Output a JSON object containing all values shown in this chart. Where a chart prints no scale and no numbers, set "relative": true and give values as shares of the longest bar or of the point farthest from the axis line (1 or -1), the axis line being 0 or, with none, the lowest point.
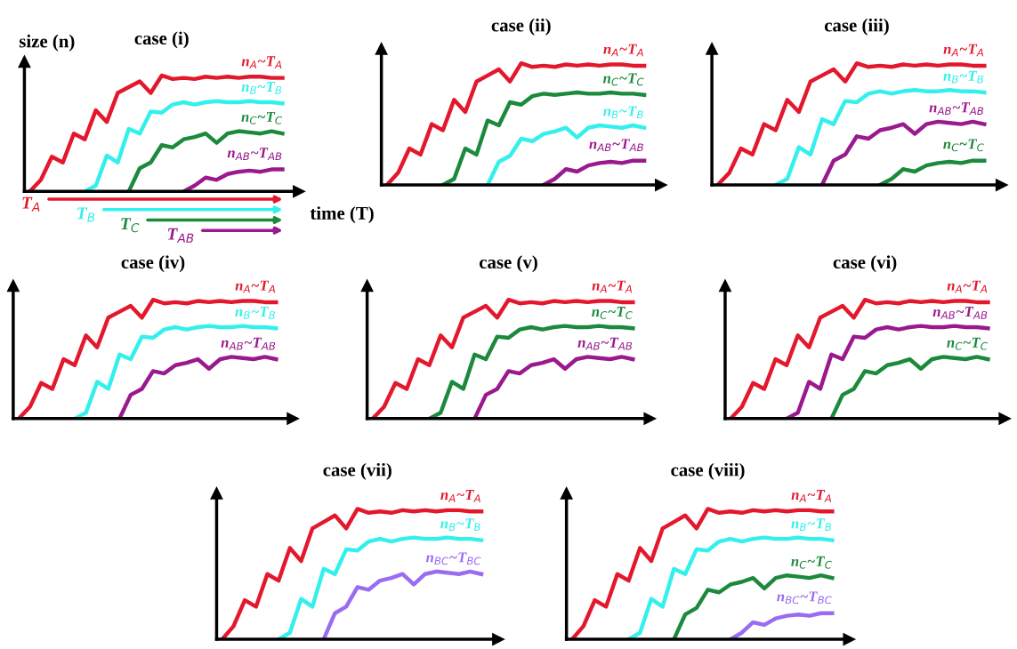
{
  "chart_data": [
    {
      "type": "line",
      "title": "case (i)",
      "xlabel": "time (T)",
      "ylabel": "size (n)",
      "relative": true,
      "grid": false,
      "legend": false,
      "categories": [
        null,
        null,
        null,
        null,
        null,
        null,
        null,
        null,
        null,
        null,
        null,
        null,
        null,
        null,
        null,
        null,
        null,
        null,
        null,
        null,
        null,
        null,
        null,
        null
      ],
      "annotations": [
        "T$_{A}$",
        "T$_{B}$",
        "T$_{C}$",
        "T$_{AB}$"
      ],
      "series": [
        {
          "name": "n$_{A}$~T$_{A}$",
          "color": "#e3182d",
          "values": [
            0,
            0.1,
            0.3,
            0.25,
            0.5,
            0.45,
            0.7,
            0.6,
            0.85,
            0.9,
            0.95,
            0.85,
            1.0,
            0.97,
            0.98,
            0.97,
            0.99,
            0.98,
            0.99,
            0.98,
            0.99,
            0.99,
            0.98,
            0.98
          ]
        },
        {
          "name": "n$_{B}$~T$_{B}$",
          "color": "#33f0ec",
          "values": [
            null,
            null,
            null,
            null,
            null,
            0,
            0.05,
            0.31,
            0.25,
            0.54,
            0.5,
            0.69,
            0.68,
            0.75,
            0.77,
            0.75,
            0.77,
            0.78,
            0.77,
            0.77,
            0.78,
            0.77,
            0.77,
            0.76
          ]
        },
        {
          "name": "n$_{C}$~T$_{C}$",
          "color": "#1b8a3c",
          "values": [
            null,
            null,
            null,
            null,
            null,
            null,
            null,
            null,
            null,
            0,
            0.2,
            0.25,
            0.4,
            0.38,
            0.45,
            0.47,
            0.5,
            0.42,
            0.5,
            0.52,
            0.51,
            0.5,
            0.52,
            0.5
          ]
        },
        {
          "name": "n$_{AB}$~T$_{AB}$",
          "color": "#9a1a8e",
          "values": [
            null,
            null,
            null,
            null,
            null,
            null,
            null,
            null,
            null,
            null,
            null,
            null,
            null,
            null,
            0,
            0.05,
            0.12,
            0.1,
            0.15,
            0.17,
            0.18,
            0.17,
            0.19,
            0.19
          ]
        }
      ]
    },
    {
      "type": "line",
      "title": "case (ii)",
      "relative": true,
      "grid": false,
      "legend": false,
      "categories": [
        null,
        null,
        null,
        null,
        null,
        null,
        null,
        null,
        null,
        null,
        null,
        null,
        null,
        null,
        null,
        null,
        null,
        null,
        null,
        null,
        null,
        null,
        null,
        null
      ],
      "series": [
        {
          "name": "n$_{A}$~T$_{A}$",
          "color": "#e3182d",
          "values": [
            0,
            0.1,
            0.3,
            0.25,
            0.5,
            0.45,
            0.7,
            0.6,
            0.85,
            0.9,
            0.95,
            0.85,
            1.0,
            0.97,
            0.98,
            0.97,
            0.99,
            0.98,
            0.99,
            0.98,
            0.99,
            0.99,
            0.98,
            0.98
          ]
        },
        {
          "name": "n$_{C}$~T$_{C}$",
          "color": "#1b8a3c",
          "values": [
            null,
            null,
            null,
            null,
            null,
            0,
            0.05,
            0.3,
            0.25,
            0.53,
            0.49,
            0.68,
            0.66,
            0.73,
            0.75,
            0.74,
            0.75,
            0.76,
            0.75,
            0.75,
            0.76,
            0.75,
            0.75,
            0.74
          ]
        },
        {
          "name": "n$_{B}$~T$_{B}$",
          "color": "#33f0ec",
          "values": [
            null,
            null,
            null,
            null,
            null,
            null,
            null,
            null,
            null,
            0,
            0.19,
            0.24,
            0.38,
            0.36,
            0.42,
            0.44,
            0.47,
            0.39,
            0.47,
            0.49,
            0.48,
            0.47,
            0.49,
            0.47
          ]
        },
        {
          "name": "n$_{AB}$~T$_{AB}$",
          "color": "#9a1a8e",
          "values": [
            null,
            null,
            null,
            null,
            null,
            null,
            null,
            null,
            null,
            null,
            null,
            null,
            null,
            null,
            0,
            0.05,
            0.13,
            0.11,
            0.16,
            0.18,
            0.19,
            0.18,
            0.2,
            0.2
          ]
        }
      ]
    },
    {
      "type": "line",
      "title": "case (iii)",
      "relative": true,
      "grid": false,
      "legend": false,
      "categories": [
        null,
        null,
        null,
        null,
        null,
        null,
        null,
        null,
        null,
        null,
        null,
        null,
        null,
        null,
        null,
        null,
        null,
        null,
        null,
        null,
        null,
        null,
        null,
        null
      ],
      "series": [
        {
          "name": "n$_{A}$~T$_{A}$",
          "color": "#e3182d",
          "values": [
            0,
            0.1,
            0.3,
            0.25,
            0.5,
            0.45,
            0.7,
            0.6,
            0.85,
            0.9,
            0.95,
            0.85,
            1.0,
            0.97,
            0.98,
            0.97,
            0.99,
            0.98,
            0.99,
            0.98,
            0.99,
            0.99,
            0.98,
            0.98
          ]
        },
        {
          "name": "n$_{B}$~T$_{B}$",
          "color": "#33f0ec",
          "values": [
            null,
            null,
            null,
            null,
            null,
            0,
            0.05,
            0.31,
            0.25,
            0.54,
            0.5,
            0.69,
            0.68,
            0.75,
            0.77,
            0.75,
            0.77,
            0.78,
            0.77,
            0.77,
            0.78,
            0.77,
            0.77,
            0.76
          ]
        },
        {
          "name": "n$_{AB}$~T$_{AB}$",
          "color": "#9a1a8e",
          "values": [
            null,
            null,
            null,
            null,
            null,
            null,
            null,
            null,
            null,
            0,
            0.2,
            0.25,
            0.4,
            0.38,
            0.45,
            0.47,
            0.5,
            0.42,
            0.5,
            0.52,
            0.51,
            0.5,
            0.52,
            0.5
          ]
        },
        {
          "name": "n$_{C}$~T$_{C}$",
          "color": "#1b8a3c",
          "values": [
            null,
            null,
            null,
            null,
            null,
            null,
            null,
            null,
            null,
            null,
            null,
            null,
            null,
            null,
            0,
            0.05,
            0.13,
            0.11,
            0.16,
            0.18,
            0.19,
            0.18,
            0.2,
            0.2
          ]
        }
      ]
    },
    {
      "type": "line",
      "title": "case (iv)",
      "relative": true,
      "grid": false,
      "legend": false,
      "categories": [
        null,
        null,
        null,
        null,
        null,
        null,
        null,
        null,
        null,
        null,
        null,
        null,
        null,
        null,
        null,
        null,
        null,
        null,
        null,
        null,
        null,
        null,
        null,
        null
      ],
      "series": [
        {
          "name": "n$_{A}$~T$_{A}$",
          "color": "#e3182d",
          "values": [
            0,
            0.1,
            0.3,
            0.25,
            0.5,
            0.45,
            0.7,
            0.6,
            0.85,
            0.9,
            0.95,
            0.85,
            1.0,
            0.97,
            0.98,
            0.97,
            0.99,
            0.98,
            0.99,
            0.98,
            0.99,
            0.99,
            0.98,
            0.98
          ]
        },
        {
          "name": "n$_{B}$~T$_{B}$",
          "color": "#33f0ec",
          "values": [
            null,
            null,
            null,
            null,
            null,
            0,
            0.05,
            0.31,
            0.25,
            0.54,
            0.5,
            0.69,
            0.68,
            0.75,
            0.77,
            0.75,
            0.77,
            0.78,
            0.77,
            0.77,
            0.78,
            0.77,
            0.77,
            0.76
          ]
        },
        {
          "name": "n$_{AB}$~T$_{AB}$",
          "color": "#9a1a8e",
          "values": [
            null,
            null,
            null,
            null,
            null,
            null,
            null,
            null,
            null,
            0,
            0.2,
            0.25,
            0.4,
            0.38,
            0.45,
            0.47,
            0.5,
            0.42,
            0.5,
            0.52,
            0.51,
            0.5,
            0.52,
            0.5
          ]
        }
      ]
    },
    {
      "type": "line",
      "title": "case (v)",
      "relative": true,
      "grid": false,
      "legend": false,
      "categories": [
        null,
        null,
        null,
        null,
        null,
        null,
        null,
        null,
        null,
        null,
        null,
        null,
        null,
        null,
        null,
        null,
        null,
        null,
        null,
        null,
        null,
        null,
        null,
        null
      ],
      "series": [
        {
          "name": "n$_{A}$~T$_{A}$",
          "color": "#e3182d",
          "values": [
            0,
            0.1,
            0.3,
            0.25,
            0.5,
            0.45,
            0.7,
            0.6,
            0.85,
            0.9,
            0.95,
            0.85,
            1.0,
            0.97,
            0.98,
            0.97,
            0.99,
            0.98,
            0.99,
            0.98,
            0.99,
            0.99,
            0.98,
            0.98
          ]
        },
        {
          "name": "n$_{C}$~T$_{C}$",
          "color": "#1b8a3c",
          "values": [
            null,
            null,
            null,
            null,
            null,
            0,
            0.05,
            0.31,
            0.25,
            0.54,
            0.5,
            0.69,
            0.68,
            0.75,
            0.77,
            0.75,
            0.77,
            0.78,
            0.77,
            0.77,
            0.78,
            0.77,
            0.77,
            0.76
          ]
        },
        {
          "name": "n$_{AB}$~T$_{AB}$",
          "color": "#9a1a8e",
          "values": [
            null,
            null,
            null,
            null,
            null,
            null,
            null,
            null,
            null,
            0,
            0.2,
            0.25,
            0.4,
            0.38,
            0.45,
            0.47,
            0.5,
            0.42,
            0.5,
            0.52,
            0.51,
            0.5,
            0.52,
            0.5
          ]
        }
      ]
    },
    {
      "type": "line",
      "title": "case (vi)",
      "relative": true,
      "grid": false,
      "legend": false,
      "categories": [
        null,
        null,
        null,
        null,
        null,
        null,
        null,
        null,
        null,
        null,
        null,
        null,
        null,
        null,
        null,
        null,
        null,
        null,
        null,
        null,
        null,
        null,
        null,
        null
      ],
      "series": [
        {
          "name": "n$_{A}$~T$_{A}$",
          "color": "#e3182d",
          "values": [
            0,
            0.1,
            0.3,
            0.25,
            0.5,
            0.45,
            0.7,
            0.6,
            0.85,
            0.9,
            0.95,
            0.85,
            1.0,
            0.97,
            0.98,
            0.97,
            0.99,
            0.98,
            0.99,
            0.98,
            0.99,
            0.99,
            0.98,
            0.98
          ]
        },
        {
          "name": "n$_{AB}$~T$_{AB}$",
          "color": "#9a1a8e",
          "values": [
            null,
            null,
            null,
            null,
            null,
            0,
            0.05,
            0.31,
            0.25,
            0.54,
            0.5,
            0.69,
            0.68,
            0.75,
            0.77,
            0.75,
            0.77,
            0.78,
            0.77,
            0.77,
            0.78,
            0.77,
            0.77,
            0.76
          ]
        },
        {
          "name": "n$_{C}$~T$_{C}$",
          "color": "#1b8a3c",
          "values": [
            null,
            null,
            null,
            null,
            null,
            null,
            null,
            null,
            null,
            0,
            0.2,
            0.25,
            0.4,
            0.38,
            0.45,
            0.47,
            0.5,
            0.42,
            0.5,
            0.52,
            0.51,
            0.5,
            0.52,
            0.5
          ]
        }
      ]
    },
    {
      "type": "line",
      "title": "case (vii)",
      "relative": true,
      "grid": false,
      "legend": false,
      "categories": [
        null,
        null,
        null,
        null,
        null,
        null,
        null,
        null,
        null,
        null,
        null,
        null,
        null,
        null,
        null,
        null,
        null,
        null,
        null,
        null,
        null,
        null,
        null,
        null
      ],
      "series": [
        {
          "name": "n$_{A}$~T$_{A}$",
          "color": "#e3182d",
          "values": [
            0,
            0.1,
            0.3,
            0.25,
            0.5,
            0.45,
            0.7,
            0.6,
            0.85,
            0.9,
            0.95,
            0.85,
            1.0,
            0.97,
            0.98,
            0.97,
            0.99,
            0.98,
            0.99,
            0.98,
            0.99,
            0.99,
            0.98,
            0.98
          ]
        },
        {
          "name": "n$_{B}$~T$_{B}$",
          "color": "#33f0ec",
          "values": [
            null,
            null,
            null,
            null,
            null,
            0,
            0.05,
            0.31,
            0.25,
            0.54,
            0.5,
            0.69,
            0.68,
            0.75,
            0.77,
            0.75,
            0.77,
            0.78,
            0.77,
            0.77,
            0.78,
            0.77,
            0.77,
            0.76
          ]
        },
        {
          "name": "n$_{BC}$~T$_{BC}$",
          "color": "#9a6cf0",
          "values": [
            null,
            null,
            null,
            null,
            null,
            null,
            null,
            null,
            null,
            0,
            0.2,
            0.25,
            0.4,
            0.38,
            0.45,
            0.47,
            0.5,
            0.42,
            0.5,
            0.52,
            0.51,
            0.5,
            0.52,
            0.5
          ]
        }
      ]
    },
    {
      "type": "line",
      "title": "case (viii)",
      "relative": true,
      "grid": false,
      "legend": false,
      "categories": [
        null,
        null,
        null,
        null,
        null,
        null,
        null,
        null,
        null,
        null,
        null,
        null,
        null,
        null,
        null,
        null,
        null,
        null,
        null,
        null,
        null,
        null,
        null,
        null
      ],
      "series": [
        {
          "name": "n$_{A}$~T$_{A}$",
          "color": "#e3182d",
          "values": [
            0,
            0.1,
            0.3,
            0.25,
            0.5,
            0.45,
            0.7,
            0.6,
            0.85,
            0.9,
            0.95,
            0.85,
            1.0,
            0.97,
            0.98,
            0.97,
            0.99,
            0.98,
            0.99,
            0.98,
            0.99,
            0.99,
            0.98,
            0.98
          ]
        },
        {
          "name": "n$_{B}$~T$_{B}$",
          "color": "#33f0ec",
          "values": [
            null,
            null,
            null,
            null,
            null,
            0,
            0.05,
            0.31,
            0.25,
            0.54,
            0.5,
            0.69,
            0.68,
            0.75,
            0.77,
            0.75,
            0.77,
            0.78,
            0.77,
            0.77,
            0.78,
            0.77,
            0.77,
            0.76
          ]
        },
        {
          "name": "n$_{C}$~T$_{C}$",
          "color": "#1b8a3c",
          "values": [
            null,
            null,
            null,
            null,
            null,
            null,
            null,
            null,
            null,
            0,
            0.19,
            0.24,
            0.38,
            0.36,
            0.42,
            0.44,
            0.47,
            0.39,
            0.47,
            0.49,
            0.48,
            0.47,
            0.49,
            0.47
          ]
        },
        {
          "name": "n$_{BC}$~T$_{BC}$",
          "color": "#9a6cf0",
          "values": [
            null,
            null,
            null,
            null,
            null,
            null,
            null,
            null,
            null,
            null,
            null,
            null,
            null,
            null,
            0,
            0.05,
            0.13,
            0.11,
            0.16,
            0.18,
            0.19,
            0.18,
            0.2,
            0.2
          ]
        }
      ]
    }
  ]
}
